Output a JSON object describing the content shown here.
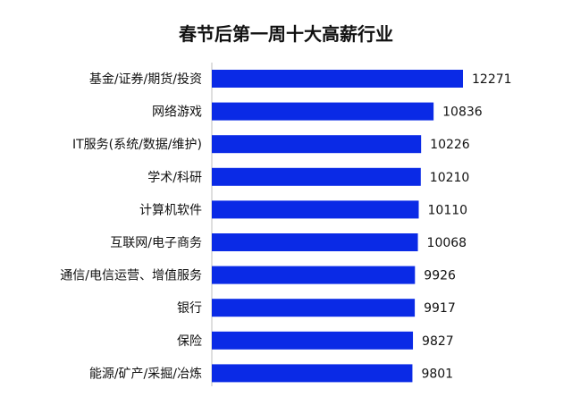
{
  "chart_data": {
    "type": "bar",
    "orientation": "horizontal",
    "title": "春节后第一周十大高薪行业",
    "categories": [
      "基金/证券/期货/投资",
      "网络游戏",
      "IT服务(系统/数据/维护)",
      "学术/科研",
      "计算机软件",
      "互联网/电子商务",
      "通信/电信运营、增值服务",
      "银行",
      "保险",
      "能源/矿产/采掘/冶炼"
    ],
    "values": [
      12271,
      10836,
      10226,
      10210,
      10110,
      10068,
      9926,
      9917,
      9827,
      9801
    ],
    "xlim": [
      0,
      12271
    ],
    "grid": false,
    "legend": "none",
    "bar_color": "#0a2ae6"
  }
}
